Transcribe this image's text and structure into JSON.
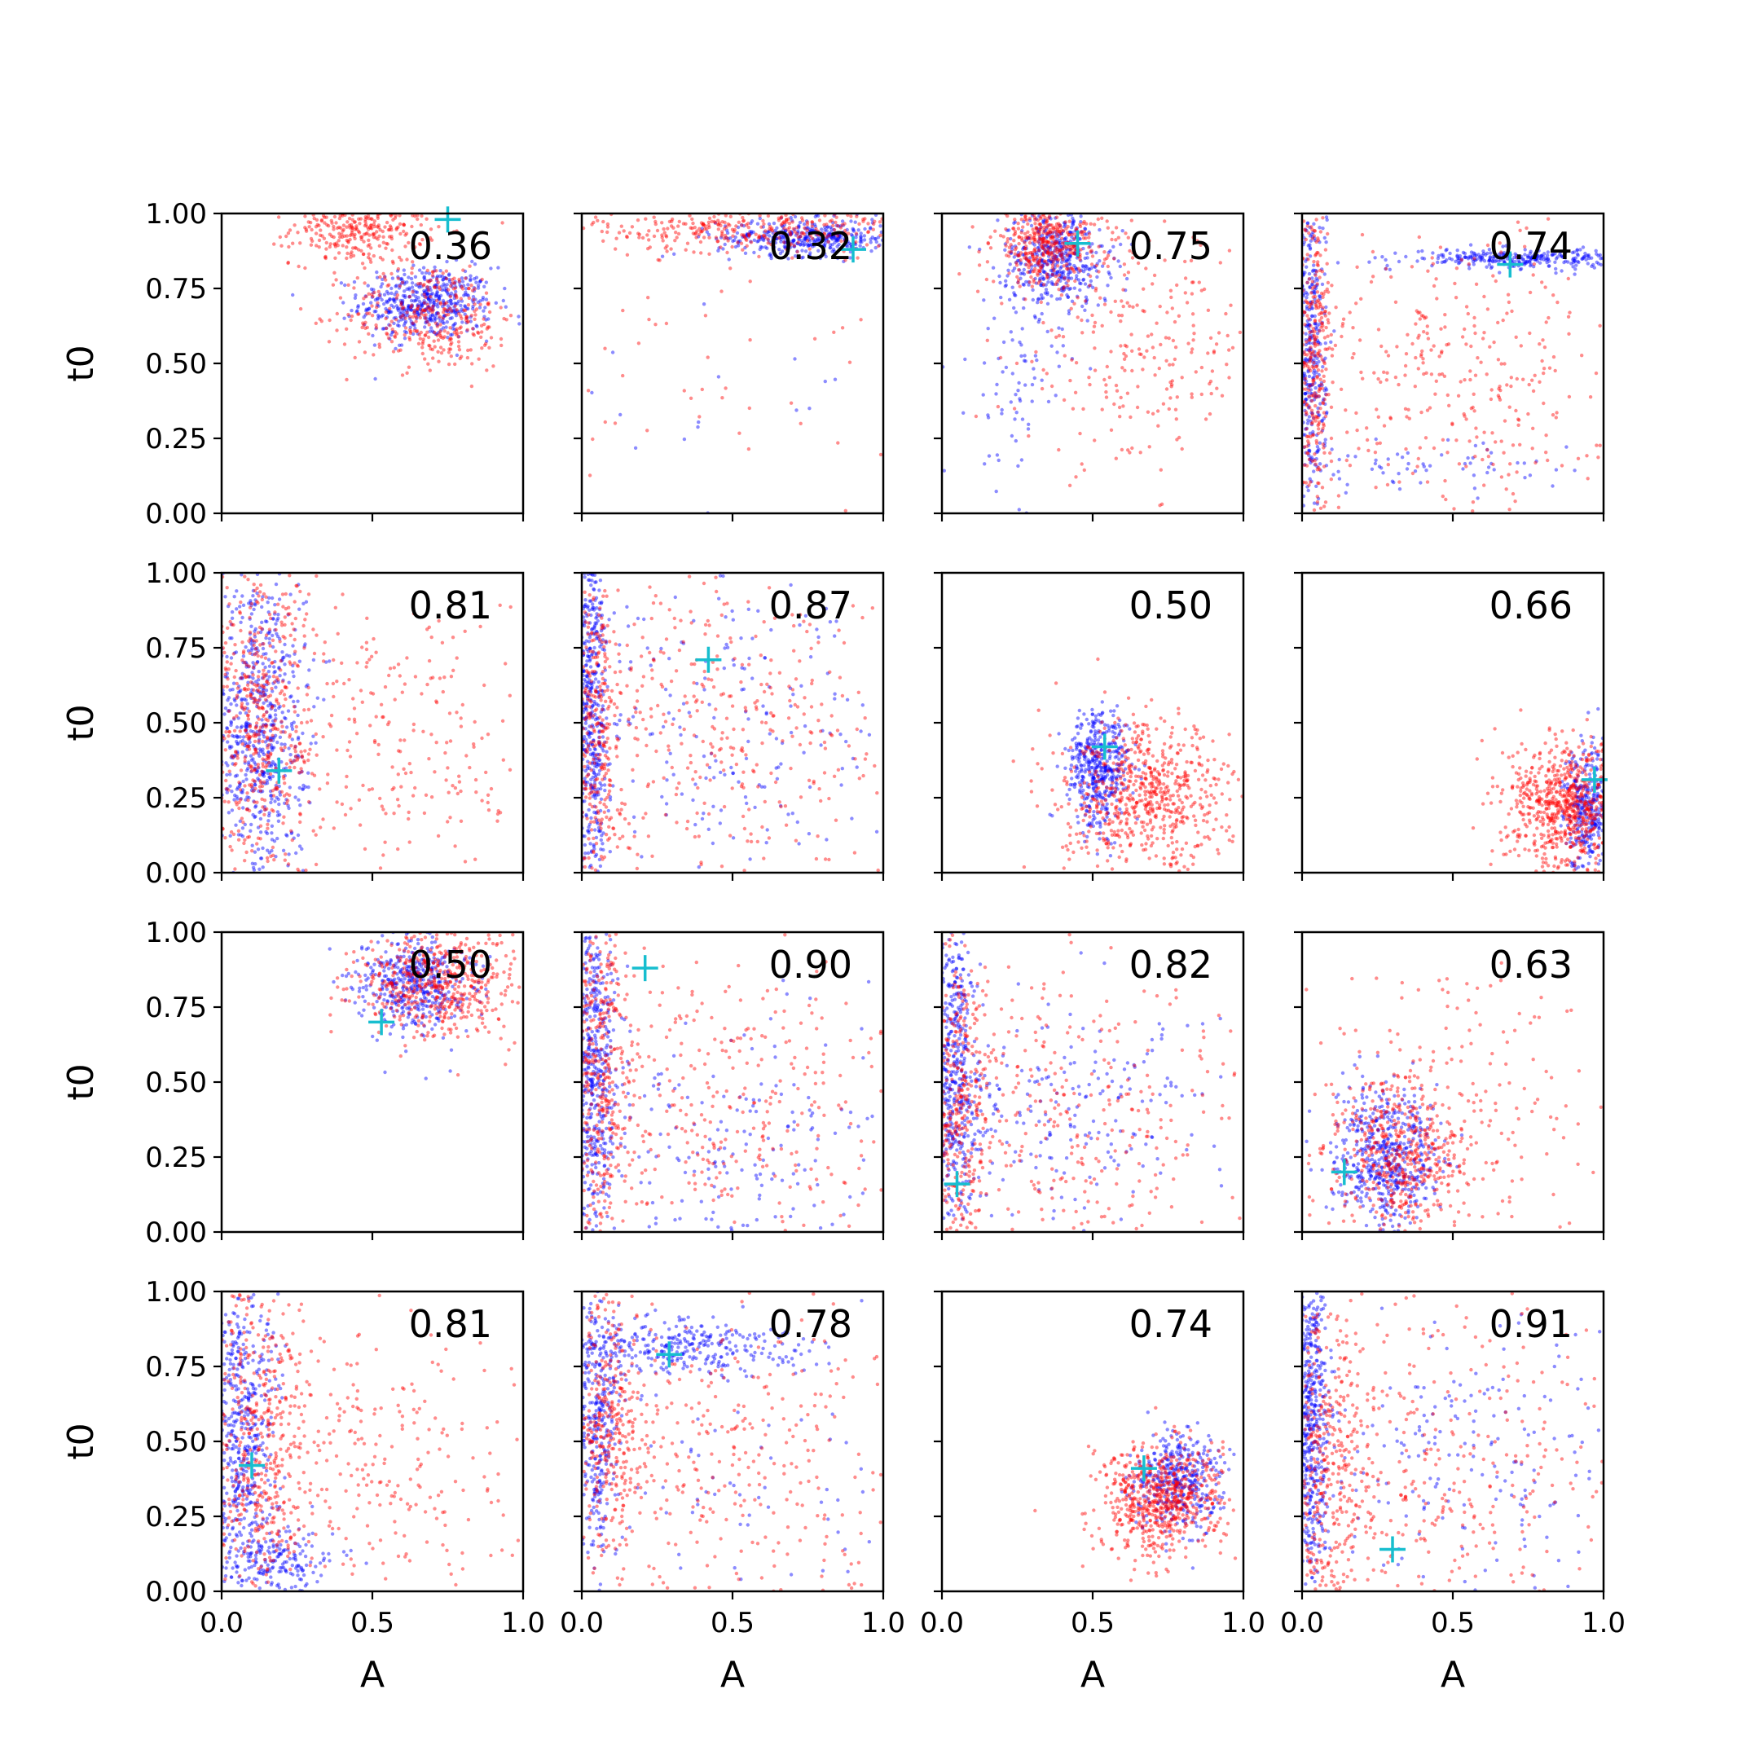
{
  "chart_data": {
    "type": "scatter",
    "layout": "4x4 grid, shared axes",
    "xlabel": "A",
    "ylabel": "t0",
    "xlim": [
      0,
      1
    ],
    "ylim": [
      0,
      1
    ],
    "xticks": [
      "0.0",
      "0.5",
      "1.0"
    ],
    "yticks": [
      "0.00",
      "0.25",
      "0.50",
      "0.75",
      "1.00"
    ],
    "grid": false,
    "colors": {
      "series_a": "#0000ff",
      "series_b": "#ff0000",
      "marker": "#17becf"
    },
    "panels": [
      {
        "label": "0.36",
        "marker": [
          0.75,
          0.98
        ],
        "blue": [
          {
            "x": 0.68,
            "y": 0.7,
            "sx": 0.11,
            "sy": 0.06,
            "n": 500
          }
        ],
        "red": [
          {
            "x": 0.45,
            "y": 0.95,
            "sx": 0.11,
            "sy": 0.06,
            "n": 260
          },
          {
            "x": 0.7,
            "y": 0.66,
            "sx": 0.14,
            "sy": 0.09,
            "n": 340
          }
        ]
      },
      {
        "label": "0.32",
        "marker": [
          0.9,
          0.88
        ],
        "blue": [
          {
            "x": 0.75,
            "y": 0.92,
            "sx": 0.15,
            "sy": 0.03,
            "n": 380
          },
          {
            "x": 0.55,
            "y": 0.35,
            "sx": 0.3,
            "sy": 0.25,
            "n": 15
          }
        ],
        "red": [
          {
            "x": 0.55,
            "y": 0.95,
            "sx": 0.25,
            "sy": 0.04,
            "n": 300
          },
          {
            "x": 0.5,
            "y": 0.5,
            "sx": 0.3,
            "sy": 0.25,
            "n": 40
          }
        ]
      },
      {
        "label": "0.75",
        "marker": [
          0.45,
          0.9
        ],
        "blue": [
          {
            "x": 0.38,
            "y": 0.85,
            "sx": 0.09,
            "sy": 0.08,
            "n": 450
          },
          {
            "x": 0.25,
            "y": 0.45,
            "sx": 0.08,
            "sy": 0.18,
            "n": 80
          }
        ],
        "red": [
          {
            "x": 0.35,
            "y": 0.9,
            "sx": 0.09,
            "sy": 0.07,
            "n": 380
          },
          {
            "x": 0.65,
            "y": 0.55,
            "sx": 0.2,
            "sy": 0.2,
            "n": 240
          }
        ]
      },
      {
        "label": "0.74",
        "marker": [
          0.69,
          0.83
        ],
        "blue": [
          {
            "x": 0.72,
            "y": 0.85,
            "sx": 0.18,
            "sy": 0.015,
            "n": 280
          },
          {
            "x": 0.03,
            "y": 0.5,
            "sx": 0.025,
            "sy": 0.3,
            "n": 300
          },
          {
            "x": 0.4,
            "y": 0.15,
            "sx": 0.25,
            "sy": 0.04,
            "n": 60
          }
        ],
        "red": [
          {
            "x": 0.04,
            "y": 0.55,
            "sx": 0.03,
            "sy": 0.28,
            "n": 260
          },
          {
            "x": 0.5,
            "y": 0.45,
            "sx": 0.28,
            "sy": 0.25,
            "n": 320
          }
        ]
      },
      {
        "label": "0.81",
        "marker": [
          0.19,
          0.34
        ],
        "blue": [
          {
            "x": 0.12,
            "y": 0.5,
            "sx": 0.08,
            "sy": 0.28,
            "n": 600
          }
        ],
        "red": [
          {
            "x": 0.12,
            "y": 0.5,
            "sx": 0.09,
            "sy": 0.28,
            "n": 450
          },
          {
            "x": 0.6,
            "y": 0.45,
            "sx": 0.22,
            "sy": 0.25,
            "n": 220
          }
        ]
      },
      {
        "label": "0.87",
        "marker": [
          0.42,
          0.71
        ],
        "blue": [
          {
            "x": 0.03,
            "y": 0.55,
            "sx": 0.03,
            "sy": 0.3,
            "n": 400
          },
          {
            "x": 0.5,
            "y": 0.45,
            "sx": 0.3,
            "sy": 0.28,
            "n": 180
          }
        ],
        "red": [
          {
            "x": 0.05,
            "y": 0.5,
            "sx": 0.04,
            "sy": 0.3,
            "n": 260
          },
          {
            "x": 0.5,
            "y": 0.5,
            "sx": 0.3,
            "sy": 0.28,
            "n": 320
          }
        ]
      },
      {
        "label": "0.50",
        "marker": [
          0.54,
          0.42
        ],
        "blue": [
          {
            "x": 0.52,
            "y": 0.35,
            "sx": 0.05,
            "sy": 0.1,
            "n": 450
          }
        ],
        "red": [
          {
            "x": 0.68,
            "y": 0.25,
            "sx": 0.14,
            "sy": 0.12,
            "n": 650
          }
        ]
      },
      {
        "label": "0.66",
        "marker": [
          0.97,
          0.31
        ],
        "blue": [
          {
            "x": 0.95,
            "y": 0.22,
            "sx": 0.04,
            "sy": 0.1,
            "n": 300
          }
        ],
        "red": [
          {
            "x": 0.88,
            "y": 0.22,
            "sx": 0.1,
            "sy": 0.11,
            "n": 650
          }
        ]
      },
      {
        "label": "0.50",
        "marker": [
          0.53,
          0.7
        ],
        "blue": [
          {
            "x": 0.64,
            "y": 0.83,
            "sx": 0.09,
            "sy": 0.08,
            "n": 450
          }
        ],
        "red": [
          {
            "x": 0.72,
            "y": 0.83,
            "sx": 0.14,
            "sy": 0.09,
            "n": 500
          }
        ]
      },
      {
        "label": "0.90",
        "marker": [
          0.21,
          0.88
        ],
        "blue": [
          {
            "x": 0.04,
            "y": 0.55,
            "sx": 0.04,
            "sy": 0.3,
            "n": 400
          },
          {
            "x": 0.5,
            "y": 0.3,
            "sx": 0.28,
            "sy": 0.2,
            "n": 160
          }
        ],
        "red": [
          {
            "x": 0.06,
            "y": 0.55,
            "sx": 0.05,
            "sy": 0.3,
            "n": 300
          },
          {
            "x": 0.45,
            "y": 0.4,
            "sx": 0.3,
            "sy": 0.28,
            "n": 300
          }
        ]
      },
      {
        "label": "0.82",
        "marker": [
          0.05,
          0.16
        ],
        "blue": [
          {
            "x": 0.04,
            "y": 0.5,
            "sx": 0.04,
            "sy": 0.3,
            "n": 380
          },
          {
            "x": 0.4,
            "y": 0.4,
            "sx": 0.28,
            "sy": 0.18,
            "n": 200
          }
        ],
        "red": [
          {
            "x": 0.06,
            "y": 0.4,
            "sx": 0.05,
            "sy": 0.3,
            "n": 280
          },
          {
            "x": 0.45,
            "y": 0.35,
            "sx": 0.3,
            "sy": 0.28,
            "n": 280
          }
        ]
      },
      {
        "label": "0.63",
        "marker": [
          0.14,
          0.2
        ],
        "blue": [
          {
            "x": 0.28,
            "y": 0.25,
            "sx": 0.09,
            "sy": 0.11,
            "n": 550
          }
        ],
        "red": [
          {
            "x": 0.32,
            "y": 0.25,
            "sx": 0.11,
            "sy": 0.13,
            "n": 450
          },
          {
            "x": 0.5,
            "y": 0.45,
            "sx": 0.25,
            "sy": 0.25,
            "n": 180
          }
        ]
      },
      {
        "label": "0.81",
        "marker": [
          0.1,
          0.42
        ],
        "blue": [
          {
            "x": 0.07,
            "y": 0.5,
            "sx": 0.06,
            "sy": 0.3,
            "n": 450
          },
          {
            "x": 0.2,
            "y": 0.1,
            "sx": 0.1,
            "sy": 0.06,
            "n": 150
          }
        ],
        "red": [
          {
            "x": 0.12,
            "y": 0.5,
            "sx": 0.09,
            "sy": 0.3,
            "n": 420
          },
          {
            "x": 0.55,
            "y": 0.4,
            "sx": 0.25,
            "sy": 0.22,
            "n": 220
          }
        ]
      },
      {
        "label": "0.78",
        "marker": [
          0.29,
          0.79
        ],
        "blue": [
          {
            "x": 0.3,
            "y": 0.81,
            "sx": 0.2,
            "sy": 0.05,
            "n": 300
          },
          {
            "x": 0.05,
            "y": 0.6,
            "sx": 0.04,
            "sy": 0.25,
            "n": 300
          },
          {
            "x": 0.6,
            "y": 0.4,
            "sx": 0.3,
            "sy": 0.25,
            "n": 60
          }
        ],
        "red": [
          {
            "x": 0.08,
            "y": 0.55,
            "sx": 0.06,
            "sy": 0.28,
            "n": 280
          },
          {
            "x": 0.5,
            "y": 0.4,
            "sx": 0.3,
            "sy": 0.28,
            "n": 300
          }
        ]
      },
      {
        "label": "0.74",
        "marker": [
          0.67,
          0.41
        ],
        "blue": [
          {
            "x": 0.78,
            "y": 0.36,
            "sx": 0.07,
            "sy": 0.08,
            "n": 400
          }
        ],
        "red": [
          {
            "x": 0.72,
            "y": 0.3,
            "sx": 0.1,
            "sy": 0.1,
            "n": 650
          }
        ]
      },
      {
        "label": "0.91",
        "marker": [
          0.3,
          0.14
        ],
        "blue": [
          {
            "x": 0.03,
            "y": 0.6,
            "sx": 0.03,
            "sy": 0.3,
            "n": 400
          },
          {
            "x": 0.5,
            "y": 0.45,
            "sx": 0.3,
            "sy": 0.25,
            "n": 180
          }
        ],
        "red": [
          {
            "x": 0.08,
            "y": 0.4,
            "sx": 0.07,
            "sy": 0.28,
            "n": 320
          },
          {
            "x": 0.45,
            "y": 0.4,
            "sx": 0.3,
            "sy": 0.28,
            "n": 280
          }
        ]
      }
    ]
  }
}
